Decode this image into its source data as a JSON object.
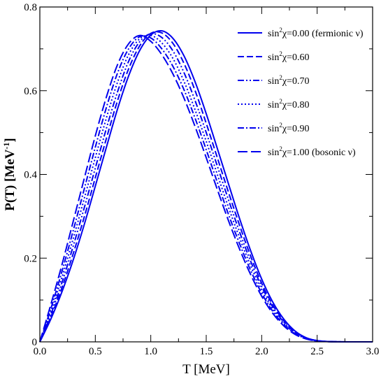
{
  "chart_data": {
    "type": "line",
    "xlabel": "T [MeV]",
    "ylabel": {
      "main": "P(T)  [MeV",
      "sup": "-1",
      "close": "]"
    },
    "xlim": [
      0,
      3.0
    ],
    "ylim": [
      0,
      0.8
    ],
    "x_ticks": [
      "0.0",
      "0.5",
      "1.0",
      "1.5",
      "2.0",
      "2.5",
      "3.0"
    ],
    "y_ticks": [
      "0",
      "0.2",
      "0.4",
      "0.6",
      "0.8"
    ],
    "grid": false,
    "legend_position": "top-right",
    "line_color": "#0000ee",
    "series": [
      {
        "name": "sin²χ=0.00 (fermionic ν)",
        "label_pre": "sin",
        "label_sup": "2",
        "label_post": "χ=0.00 (fermionic ν)",
        "style": "solid",
        "x": [
          0,
          0.1,
          0.2,
          0.3,
          0.4,
          0.5,
          0.6,
          0.7,
          0.8,
          0.9,
          1.0,
          1.1,
          1.2,
          1.3,
          1.4,
          1.5,
          1.6,
          1.7,
          1.8,
          1.9,
          2.0,
          2.1,
          2.2,
          2.3,
          2.4,
          2.5,
          2.6,
          2.7,
          2.8,
          2.9,
          3.0
        ],
        "values": [
          0,
          0.055,
          0.12,
          0.195,
          0.28,
          0.372,
          0.465,
          0.556,
          0.635,
          0.696,
          0.733,
          0.743,
          0.725,
          0.683,
          0.621,
          0.545,
          0.462,
          0.378,
          0.295,
          0.218,
          0.15,
          0.095,
          0.054,
          0.026,
          0.01,
          0.003,
          0.0008,
          0.0002,
          0,
          0,
          0
        ]
      },
      {
        "name": "sin²χ=0.60",
        "label_pre": "sin",
        "label_sup": "2",
        "label_post": "χ=0.60",
        "style": "dashed",
        "x": [
          0,
          0.1,
          0.2,
          0.3,
          0.4,
          0.5,
          0.6,
          0.7,
          0.8,
          0.9,
          1.0,
          1.1,
          1.2,
          1.3,
          1.4,
          1.5,
          1.6,
          1.7,
          1.8,
          1.9,
          2.0,
          2.1,
          2.2,
          2.3,
          2.4,
          2.5,
          2.6,
          2.7,
          2.8,
          2.9,
          3.0
        ],
        "values": [
          0,
          0.06,
          0.13,
          0.21,
          0.298,
          0.392,
          0.486,
          0.576,
          0.652,
          0.707,
          0.737,
          0.738,
          0.713,
          0.665,
          0.6,
          0.522,
          0.44,
          0.358,
          0.279,
          0.205,
          0.14,
          0.088,
          0.05,
          0.024,
          0.009,
          0.003,
          0.0007,
          0.0002,
          0,
          0,
          0
        ]
      },
      {
        "name": "sin²χ=0.70",
        "label_pre": "sin",
        "label_sup": "2",
        "label_post": "χ=0.70",
        "style": "dash-dot-dot",
        "x": [
          0,
          0.1,
          0.2,
          0.3,
          0.4,
          0.5,
          0.6,
          0.7,
          0.8,
          0.9,
          1.0,
          1.1,
          1.2,
          1.3,
          1.4,
          1.5,
          1.6,
          1.7,
          1.8,
          1.9,
          2.0,
          2.1,
          2.2,
          2.3,
          2.4,
          2.5,
          2.6,
          2.7,
          2.8,
          2.9,
          3.0
        ],
        "values": [
          0,
          0.066,
          0.142,
          0.228,
          0.32,
          0.415,
          0.51,
          0.597,
          0.67,
          0.717,
          0.736,
          0.727,
          0.695,
          0.643,
          0.576,
          0.5,
          0.42,
          0.34,
          0.263,
          0.193,
          0.132,
          0.083,
          0.047,
          0.023,
          0.009,
          0.003,
          0.0007,
          0.0002,
          0,
          0,
          0
        ]
      },
      {
        "name": "sin²χ=0.80",
        "label_pre": "sin",
        "label_sup": "2",
        "label_post": "χ=0.80",
        "style": "dotted",
        "x": [
          0,
          0.1,
          0.2,
          0.3,
          0.4,
          0.5,
          0.6,
          0.7,
          0.8,
          0.9,
          1.0,
          1.1,
          1.2,
          1.3,
          1.4,
          1.5,
          1.6,
          1.7,
          1.8,
          1.9,
          2.0,
          2.1,
          2.2,
          2.3,
          2.4,
          2.5,
          2.6,
          2.7,
          2.8,
          2.9,
          3.0
        ],
        "values": [
          0,
          0.073,
          0.155,
          0.246,
          0.342,
          0.44,
          0.535,
          0.62,
          0.686,
          0.724,
          0.732,
          0.714,
          0.677,
          0.622,
          0.554,
          0.479,
          0.4,
          0.322,
          0.249,
          0.182,
          0.124,
          0.078,
          0.044,
          0.021,
          0.008,
          0.002,
          0.0006,
          0.0001,
          0,
          0,
          0
        ]
      },
      {
        "name": "sin²χ=0.90",
        "label_pre": "sin",
        "label_sup": "2",
        "label_post": "χ=0.90",
        "style": "dash-dot",
        "x": [
          0,
          0.1,
          0.2,
          0.3,
          0.4,
          0.5,
          0.6,
          0.7,
          0.8,
          0.9,
          1.0,
          1.1,
          1.2,
          1.3,
          1.4,
          1.5,
          1.6,
          1.7,
          1.8,
          1.9,
          2.0,
          2.1,
          2.2,
          2.3,
          2.4,
          2.5,
          2.6,
          2.7,
          2.8,
          2.9,
          3.0
        ],
        "values": [
          0,
          0.08,
          0.169,
          0.265,
          0.365,
          0.465,
          0.56,
          0.642,
          0.7,
          0.729,
          0.726,
          0.7,
          0.658,
          0.602,
          0.534,
          0.459,
          0.381,
          0.305,
          0.235,
          0.171,
          0.116,
          0.073,
          0.041,
          0.02,
          0.008,
          0.002,
          0.0006,
          0.0001,
          0,
          0,
          0
        ]
      },
      {
        "name": "sin²χ=1.00 (bosonic ν)",
        "label_pre": "sin",
        "label_sup": "2",
        "label_post": "χ=1.00 (bosonic ν)",
        "style": "long-dash",
        "x": [
          0,
          0.1,
          0.2,
          0.3,
          0.4,
          0.5,
          0.6,
          0.7,
          0.8,
          0.9,
          1.0,
          1.1,
          1.2,
          1.3,
          1.4,
          1.5,
          1.6,
          1.7,
          1.8,
          1.9,
          2.0,
          2.1,
          2.2,
          2.3,
          2.4,
          2.5,
          2.6,
          2.7,
          2.8,
          2.9,
          3.0
        ],
        "values": [
          0,
          0.09,
          0.185,
          0.287,
          0.39,
          0.492,
          0.585,
          0.662,
          0.712,
          0.732,
          0.718,
          0.686,
          0.64,
          0.582,
          0.514,
          0.44,
          0.364,
          0.29,
          0.222,
          0.161,
          0.109,
          0.068,
          0.038,
          0.018,
          0.007,
          0.002,
          0.0005,
          0.0001,
          0,
          0,
          0
        ]
      }
    ]
  }
}
